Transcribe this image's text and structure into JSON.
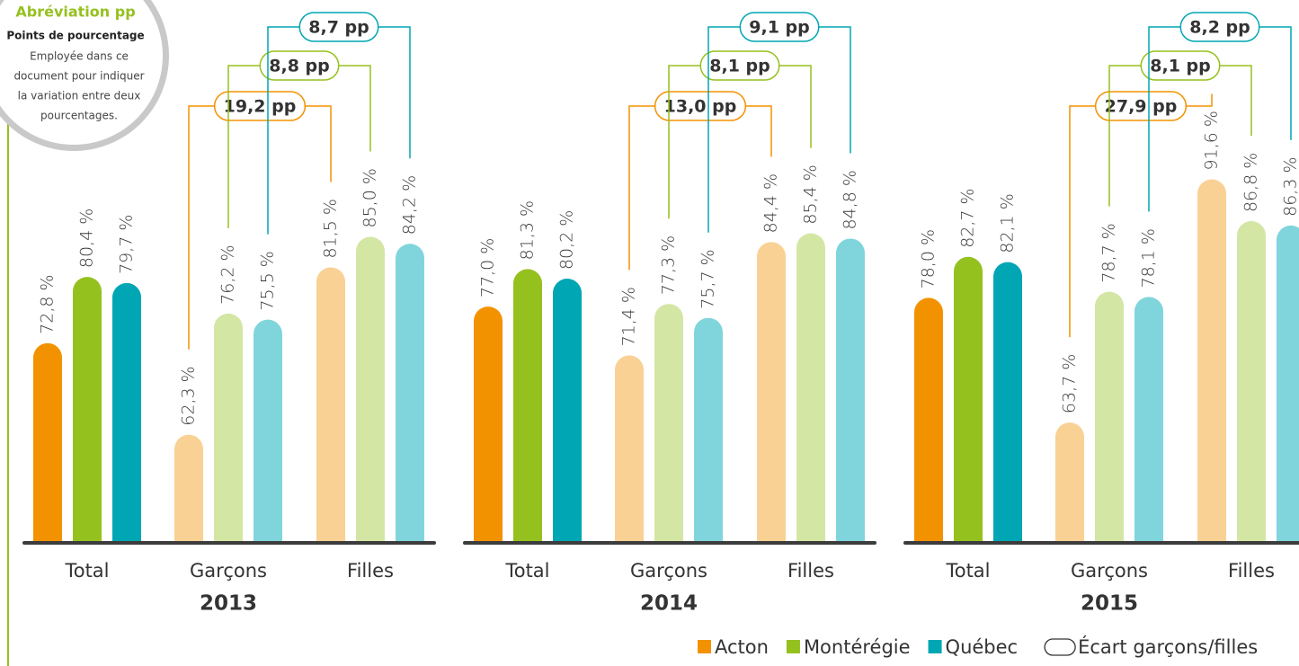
{
  "chart_data": [
    {
      "type": "bar",
      "title": "2013",
      "categories": [
        "Total",
        "Garçons",
        "Filles"
      ],
      "ylim": [
        50,
        100
      ],
      "series": [
        {
          "name": "Acton",
          "colors": [
            "#f39200",
            "#f9d195",
            "#f9d195"
          ],
          "values": [
            72.8,
            62.3,
            81.5
          ],
          "value_labels": [
            "72,8 %",
            "62,3 %",
            "81,5 %"
          ]
        },
        {
          "name": "Montérégie",
          "colors": [
            "#95c11f",
            "#d4e6a4",
            "#d4e6a4"
          ],
          "values": [
            80.4,
            76.2,
            85.0
          ],
          "value_labels": [
            "80,4 %",
            "76,2 %",
            "85,0 %"
          ]
        },
        {
          "name": "Québec",
          "colors": [
            "#00a6b4",
            "#80d5dc",
            "#80d5dc"
          ],
          "values": [
            79.7,
            75.5,
            84.2
          ],
          "value_labels": [
            "79,7 %",
            "75,5 %",
            "84,2 %"
          ]
        }
      ],
      "annotations": [
        "19,2 pp",
        "8,8 pp",
        "8,7 pp"
      ]
    },
    {
      "type": "bar",
      "title": "2014",
      "categories": [
        "Total",
        "Garçons",
        "Filles"
      ],
      "ylim": [
        50,
        100
      ],
      "series": [
        {
          "name": "Acton",
          "colors": [
            "#f39200",
            "#f9d195",
            "#f9d195"
          ],
          "values": [
            77.0,
            71.4,
            84.4
          ],
          "value_labels": [
            "77,0 %",
            "71,4 %",
            "84,4 %"
          ]
        },
        {
          "name": "Montérégie",
          "colors": [
            "#95c11f",
            "#d4e6a4",
            "#d4e6a4"
          ],
          "values": [
            81.3,
            77.3,
            85.4
          ],
          "value_labels": [
            "81,3 %",
            "77,3 %",
            "85,4 %"
          ]
        },
        {
          "name": "Québec",
          "colors": [
            "#00a6b4",
            "#80d5dc",
            "#80d5dc"
          ],
          "values": [
            80.2,
            75.7,
            84.8
          ],
          "value_labels": [
            "80,2 %",
            "75,7 %",
            "84,8 %"
          ]
        }
      ],
      "annotations": [
        "13,0 pp",
        "8,1 pp",
        "9,1 pp"
      ]
    },
    {
      "type": "bar",
      "title": "2015",
      "categories": [
        "Total",
        "Garçons",
        "Filles"
      ],
      "ylim": [
        50,
        100
      ],
      "series": [
        {
          "name": "Acton",
          "colors": [
            "#f39200",
            "#f9d195",
            "#f9d195"
          ],
          "values": [
            78.0,
            63.7,
            91.6
          ],
          "value_labels": [
            "78,0 %",
            "63,7 %",
            "91,6 %"
          ]
        },
        {
          "name": "Montérégie",
          "colors": [
            "#95c11f",
            "#d4e6a4",
            "#d4e6a4"
          ],
          "values": [
            82.7,
            78.7,
            86.8
          ],
          "value_labels": [
            "82,7 %",
            "78,7 %",
            "86,8 %"
          ]
        },
        {
          "name": "Québec",
          "colors": [
            "#00a6b4",
            "#80d5dc",
            "#80d5dc"
          ],
          "values": [
            82.1,
            78.1,
            86.3
          ],
          "value_labels": [
            "82,1 %",
            "78,1 %",
            "86,3 %"
          ]
        }
      ],
      "annotations": [
        "27,9 pp",
        "8,1 pp",
        "8,2 pp"
      ]
    }
  ],
  "legend": {
    "gap": "Écart garçons/filles"
  },
  "callout": {
    "title": "Abréviation pp",
    "subtitle": "Points de pourcentage",
    "lines": [
      "Employée dans ce",
      "document pour indiquer",
      "la variation entre deux",
      "pourcentages."
    ]
  }
}
